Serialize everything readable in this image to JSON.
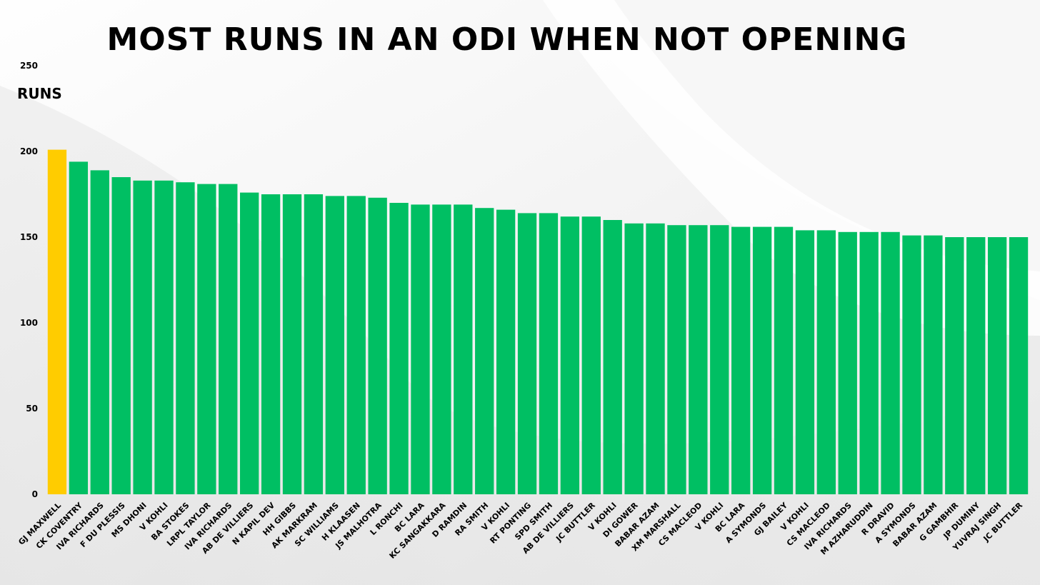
{
  "colors": {
    "highlight": "#FFCC00",
    "bar": "#00BF63",
    "text": "#000000"
  },
  "chart_data": {
    "type": "bar",
    "title": "MOST RUNS IN AN ODI WHEN NOT OPENING",
    "ylabel": "RUNS",
    "xlabel": "",
    "ylim": [
      0,
      250
    ],
    "yticks": [
      0,
      50,
      100,
      150,
      200,
      250
    ],
    "grid": false,
    "highlight_index": 0,
    "categories": [
      "GJ MAXWELL",
      "CK COVENTRY",
      "IVA RICHARDS",
      "F DU PLESSIS",
      "MS DHONI",
      "V KOHLI",
      "BA STOKES",
      "LRPL TAYLOR",
      "IVA RICHARDS",
      "AB DE VILLIERS",
      "N KAPIL DEV",
      "HH GIBBS",
      "AK MARKRAM",
      "SC WILLIAMS",
      "H KLAASEN",
      "JS MALHOTRA",
      "L RONCHI",
      "BC LARA",
      "KC SANGAKKARA",
      "D RAMDIN",
      "RA SMITH",
      "V KOHLI",
      "RT PONTING",
      "SPD SMITH",
      "AB DE VILLIERS",
      "JC BUTTLER",
      "V KOHLI",
      "DI GOWER",
      "BABAR AZAM",
      "XM MARSHALL",
      "CS MACLEOD",
      "V KOHLI",
      "BC LARA",
      "A SYMONDS",
      "GJ BAILEY",
      "V KOHLI",
      "CS MACLEOD",
      "IVA RICHARDS",
      "M AZHARUDDIN",
      "R DRAVID",
      "A SYMONDS",
      "BABAR AZAM",
      "G GAMBHIR",
      "JP DUMINY",
      "YUVRAJ SINGH",
      "JC BUTTLER"
    ],
    "values": [
      201,
      194,
      189,
      185,
      183,
      183,
      182,
      181,
      181,
      176,
      175,
      175,
      175,
      174,
      174,
      173,
      170,
      169,
      169,
      169,
      167,
      166,
      164,
      164,
      162,
      162,
      160,
      158,
      158,
      157,
      157,
      157,
      156,
      156,
      156,
      154,
      154,
      153,
      153,
      153,
      151,
      151,
      150,
      150,
      150,
      150
    ]
  }
}
